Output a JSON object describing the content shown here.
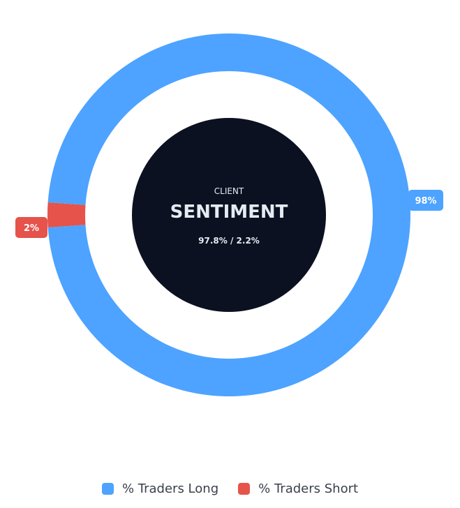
{
  "chart_data": {
    "type": "pie",
    "subtype": "donut",
    "categories": [
      "% Traders Long",
      "% Traders Short"
    ],
    "values": [
      97.8,
      2.2
    ],
    "slice_labels": [
      "98%",
      "2%"
    ],
    "colors": [
      "#4da3ff",
      "#e5534b"
    ],
    "center": {
      "small_label": "CLIENT",
      "title": "SENTIMENT",
      "ratio_text": "97.8% / 2.2%"
    },
    "legend": {
      "position": "bottom",
      "items": [
        {
          "label": "% Traders Long",
          "color": "#4da3ff"
        },
        {
          "label": "% Traders Short",
          "color": "#e5534b"
        }
      ]
    }
  },
  "colors": {
    "center_fill": "#0b1120",
    "center_text": "#e6eaf2",
    "legend_text": "#3a3f4b"
  }
}
